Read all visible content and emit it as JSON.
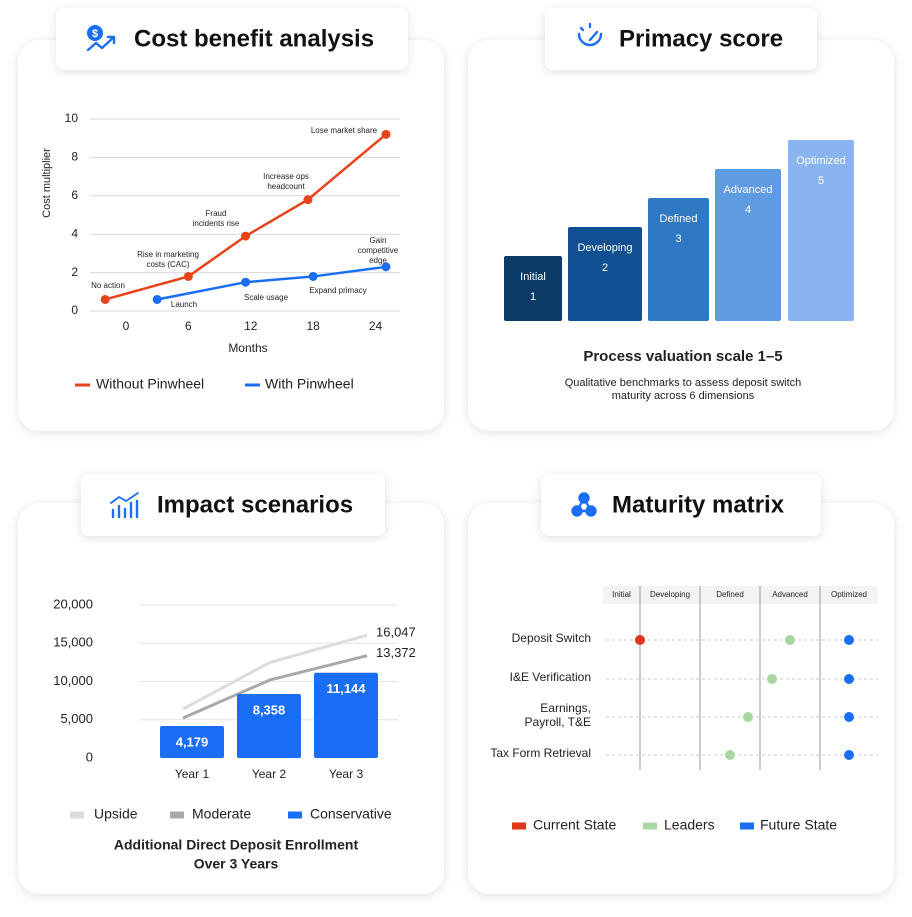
{
  "chart_data": [
    {
      "type": "line",
      "title": "Cost benefit analysis",
      "y_label": "Cost multiplier",
      "x_label": "Months",
      "xlim": [
        -3.46,
        26.35
      ],
      "xticks": [
        0,
        6,
        12,
        18,
        24
      ],
      "ylim": [
        0,
        10
      ],
      "yticks": [
        0,
        2,
        4,
        6,
        8,
        10
      ],
      "grid": true,
      "series": [
        {
          "name": "Without Pinwheel",
          "color": "#e8441c",
          "x": [
            -2,
            6,
            11.5,
            17.5,
            25
          ],
          "values": [
            0.6,
            1.8,
            3.9,
            5.8,
            9.2
          ]
        },
        {
          "name": "With Pinwheel",
          "color": "#1a6ef5",
          "x": [
            3,
            11.5,
            18,
            25
          ],
          "values": [
            0.6,
            1.5,
            1.8,
            2.3
          ]
        }
      ],
      "annotations": [
        {
          "lines": [
            "No action"
          ]
        },
        {
          "lines": [
            "Rise in marketing",
            "costs (CAC)"
          ]
        },
        {
          "lines": [
            "Fraud",
            "incidents rise"
          ]
        },
        {
          "lines": [
            "Increase ops",
            "headcount"
          ]
        },
        {
          "lines": [
            "Lose market share"
          ]
        },
        {
          "lines": [
            "Launch"
          ]
        },
        {
          "lines": [
            "Scale usage"
          ]
        },
        {
          "lines": [
            "Expand primacy"
          ]
        },
        {
          "lines": [
            "Gain",
            "competitive",
            "edge"
          ]
        }
      ]
    },
    {
      "type": "scale",
      "title": "Primacy score",
      "subtitle": "Process valuation scale 1–5",
      "description": [
        "Qualitative benchmarks to assess deposit switch",
        "maturity across 6 dimensions"
      ],
      "categories": [
        "Initial",
        "Developing",
        "Defined",
        "Advanced",
        "Optimized"
      ],
      "values": [
        1,
        2,
        3,
        4,
        5
      ],
      "colors": [
        "#0b3a66",
        "#0f4f92",
        "#2f78c4",
        "#5e9be0",
        "#89b4ef"
      ]
    },
    {
      "type": "bar",
      "title": "Impact scenarios",
      "subtitle": [
        "Additional Direct Deposit Enrollment",
        "Over 3 Years"
      ],
      "categories": [
        "Year 1",
        "Year 2",
        "Year 3"
      ],
      "ylim": [
        0,
        20000
      ],
      "grid": true,
      "yticks": [
        0,
        {
          "value": 5000,
          "label": "5,000"
        },
        {
          "value": 10000,
          "label": "10,000"
        },
        {
          "value": 15000,
          "label": "15,000"
        },
        {
          "value": 20000,
          "label": "20,000"
        }
      ],
      "series": [
        {
          "name": "Upside",
          "color": "#dcdcdc",
          "kind": "line",
          "values": [
            6400,
            12500,
            16047
          ],
          "value_labels": [
            null,
            null,
            "16,047"
          ]
        },
        {
          "name": "Moderate",
          "color": "#a9a9a9",
          "kind": "line",
          "values": [
            5230,
            10200,
            13372
          ],
          "value_labels": [
            null,
            null,
            "13,372"
          ]
        },
        {
          "name": "Conservative",
          "color": "#1a6ef5",
          "kind": "bar",
          "values": [
            4179,
            8358,
            11144
          ],
          "value_labels": [
            "4,179",
            "8,358",
            "11,144"
          ]
        }
      ]
    },
    {
      "type": "dot-matrix",
      "title": "Maturity matrix",
      "columns": [
        "Initial",
        "Developing",
        "Defined",
        "Advanced",
        "Optimized"
      ],
      "xlim": [
        0,
        5
      ],
      "rows": [
        [
          "Deposit Switch"
        ],
        [
          "I&E Verification"
        ],
        [
          "Earnings,",
          "Payroll, T&E"
        ],
        [
          "Tax Form Retrieval"
        ]
      ],
      "series": [
        {
          "name": "Current State",
          "color": "#e0361b",
          "values": [
            1,
            null,
            null,
            null
          ]
        },
        {
          "name": "Leaders",
          "color": "#a8d8a0",
          "values": [
            3.5,
            3.2,
            2.8,
            2.5
          ]
        },
        {
          "name": "Future State",
          "color": "#1a6ef5",
          "values": [
            4.5,
            4.5,
            4.5,
            4.5
          ]
        }
      ]
    }
  ]
}
